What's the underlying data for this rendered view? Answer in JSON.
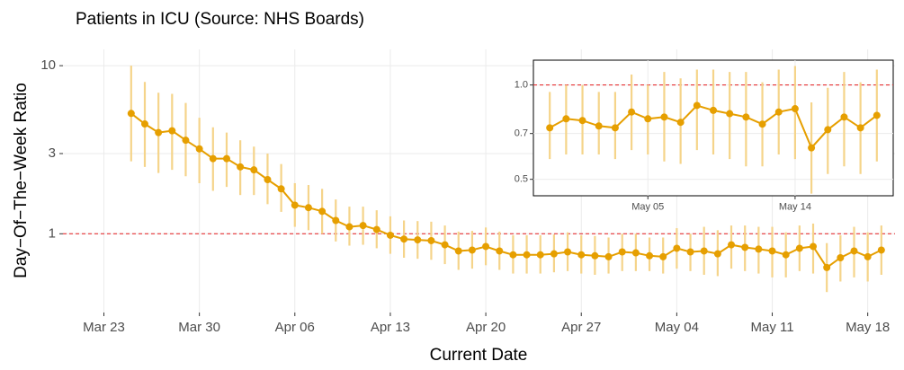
{
  "chart_data": [
    {
      "type": "line",
      "title": "Patients in ICU (Source: NHS Boards)",
      "x_label": "Current Date",
      "y_label": "Day−Of−The−Week Ratio",
      "log_y": true,
      "grid": true,
      "color": "#e69f00",
      "error_color": "#f5d48a",
      "reference_line": 1,
      "reference_color": "#e41a1c",
      "xlim": [
        "Mar 20",
        "May 20"
      ],
      "xticks": [
        "Mar 23",
        "Mar 30",
        "Apr 06",
        "Apr 13",
        "Apr 20",
        "Apr 27",
        "May 04",
        "May 11",
        "May 18"
      ],
      "ylim": [
        0.34,
        12.5
      ],
      "yticks": [
        1,
        3,
        10
      ],
      "x": [
        "Mar 25",
        "Mar 26",
        "Mar 27",
        "Mar 28",
        "Mar 29",
        "Mar 30",
        "Mar 31",
        "Apr 01",
        "Apr 02",
        "Apr 03",
        "Apr 04",
        "Apr 05",
        "Apr 06",
        "Apr 07",
        "Apr 08",
        "Apr 09",
        "Apr 10",
        "Apr 11",
        "Apr 12",
        "Apr 13",
        "Apr 14",
        "Apr 15",
        "Apr 16",
        "Apr 17",
        "Apr 18",
        "Apr 19",
        "Apr 20",
        "Apr 21",
        "Apr 22",
        "Apr 23",
        "Apr 24",
        "Apr 25",
        "Apr 26",
        "Apr 27",
        "Apr 28",
        "Apr 29",
        "Apr 30",
        "May 01",
        "May 02",
        "May 03",
        "May 04",
        "May 05",
        "May 06",
        "May 07",
        "May 08",
        "May 09",
        "May 10",
        "May 11",
        "May 12",
        "May 13",
        "May 14",
        "May 15",
        "May 16",
        "May 17",
        "May 18",
        "May 19"
      ],
      "values": [
        5.2,
        4.5,
        4.0,
        4.1,
        3.6,
        3.2,
        2.8,
        2.8,
        2.5,
        2.4,
        2.1,
        1.85,
        1.48,
        1.43,
        1.36,
        1.2,
        1.1,
        1.12,
        1.06,
        0.98,
        0.93,
        0.92,
        0.91,
        0.86,
        0.79,
        0.8,
        0.84,
        0.79,
        0.75,
        0.75,
        0.75,
        0.76,
        0.78,
        0.75,
        0.74,
        0.73,
        0.78,
        0.77,
        0.74,
        0.73,
        0.82,
        0.78,
        0.79,
        0.76,
        0.86,
        0.83,
        0.81,
        0.79,
        0.75,
        0.82,
        0.84,
        0.63,
        0.72,
        0.79,
        0.73,
        0.8
      ],
      "lower": [
        2.7,
        2.5,
        2.3,
        2.4,
        2.2,
        2.0,
        1.8,
        1.9,
        1.7,
        1.7,
        1.5,
        1.35,
        1.1,
        1.05,
        1.0,
        0.9,
        0.85,
        0.86,
        0.82,
        0.76,
        0.72,
        0.71,
        0.7,
        0.66,
        0.61,
        0.62,
        0.65,
        0.61,
        0.58,
        0.58,
        0.58,
        0.59,
        0.6,
        0.58,
        0.57,
        0.58,
        0.6,
        0.6,
        0.6,
        0.58,
        0.62,
        0.6,
        0.57,
        0.56,
        0.62,
        0.6,
        0.58,
        0.55,
        0.55,
        0.6,
        0.58,
        0.45,
        0.52,
        0.55,
        0.52,
        0.57
      ],
      "upper": [
        10,
        8.0,
        6.9,
        6.8,
        6.0,
        4.9,
        4.3,
        4.0,
        3.6,
        3.3,
        3.0,
        2.6,
        2.0,
        1.95,
        1.85,
        1.6,
        1.45,
        1.45,
        1.38,
        1.27,
        1.2,
        1.19,
        1.18,
        1.12,
        1.03,
        1.04,
        1.09,
        1.03,
        0.98,
        0.98,
        0.98,
        0.99,
        1.02,
        0.98,
        0.97,
        0.95,
        1.0,
        1.0,
        0.95,
        0.95,
        1.08,
        1.0,
        1.1,
        1.05,
        1.12,
        1.12,
        1.1,
        1.1,
        1.02,
        1.12,
        1.15,
        0.88,
        0.98,
        1.1,
        1.02,
        1.12
      ]
    },
    {
      "type": "line",
      "log_y": true,
      "grid": true,
      "color": "#e69f00",
      "error_color": "#f5d48a",
      "reference_line": 1,
      "reference_color": "#e41a1c",
      "xlim": [
        "Apr 28",
        "May 20"
      ],
      "xticks": [
        "May 05",
        "May 14"
      ],
      "ylim": [
        0.443,
        1.2
      ],
      "yticks": [
        0.5,
        0.7,
        {
          "value": 1,
          "label": "1.0"
        }
      ],
      "x": [
        "Apr 29",
        "Apr 30",
        "May 01",
        "May 02",
        "May 03",
        "May 04",
        "May 05",
        "May 06",
        "May 07",
        "May 08",
        "May 09",
        "May 10",
        "May 11",
        "May 12",
        "May 13",
        "May 14",
        "May 15",
        "May 16",
        "May 17",
        "May 18",
        "May 19"
      ],
      "values": [
        0.73,
        0.78,
        0.77,
        0.74,
        0.73,
        0.82,
        0.78,
        0.79,
        0.76,
        0.86,
        0.83,
        0.81,
        0.79,
        0.75,
        0.82,
        0.84,
        0.63,
        0.72,
        0.79,
        0.73,
        0.8
      ],
      "lower": [
        0.58,
        0.6,
        0.6,
        0.6,
        0.58,
        0.62,
        0.6,
        0.57,
        0.56,
        0.62,
        0.6,
        0.58,
        0.55,
        0.55,
        0.6,
        0.58,
        0.45,
        0.52,
        0.55,
        0.52,
        0.57
      ],
      "upper": [
        0.95,
        1.0,
        1.0,
        0.95,
        0.95,
        1.08,
        1.0,
        1.1,
        1.05,
        1.12,
        1.12,
        1.1,
        1.1,
        1.02,
        1.12,
        1.15,
        0.88,
        0.98,
        1.1,
        1.02,
        1.12
      ]
    }
  ]
}
